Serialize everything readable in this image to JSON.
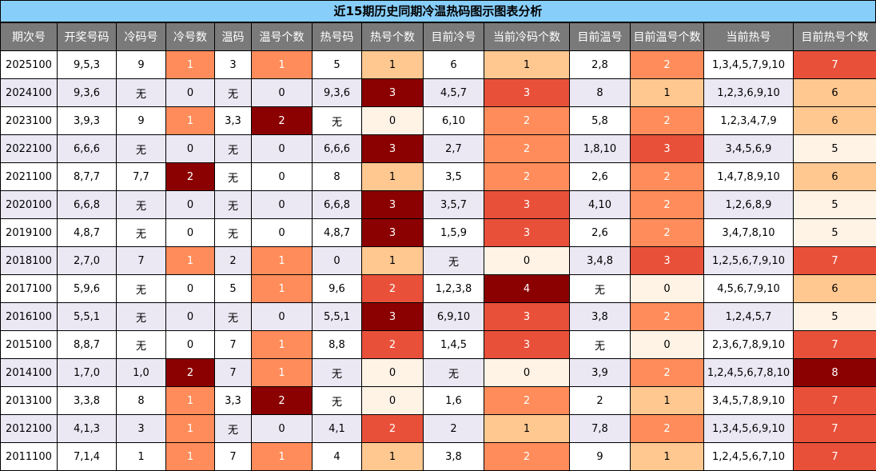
{
  "chart_data": {
    "type": "table",
    "title": "近15期历史同期冷温热码图示图表分析",
    "columns": [
      "期次号",
      "开奖号码",
      "冷码号",
      "冷号数",
      "温码",
      "温号个数",
      "热号码",
      "热号个数",
      "目前冷号",
      "当前冷码个数",
      "目前温号",
      "目前温号个数",
      "当前热号",
      "目前热号个数"
    ],
    "heat_colors": {
      "level1": "#ffc890",
      "level2": "#ff8c5a",
      "level3": "#e8503a",
      "level4": "#8b0000",
      "level1_soft": "#ffd8a8",
      "empty": "#fff3e6"
    },
    "rows": [
      [
        "2025100",
        "9,5,3",
        "9",
        "1",
        "3",
        "1",
        "5",
        "1",
        "6",
        "1",
        "2,8",
        "2",
        "1,3,4,5,7,9,10",
        "7"
      ],
      [
        "2024100",
        "9,3,6",
        "无",
        "0",
        "无",
        "0",
        "9,3,6",
        "3",
        "4,5,7",
        "3",
        "8",
        "1",
        "1,2,3,6,9,10",
        "6"
      ],
      [
        "2023100",
        "3,9,3",
        "9",
        "1",
        "3,3",
        "2",
        "无",
        "0",
        "6,10",
        "2",
        "5,8",
        "2",
        "1,2,3,4,7,9",
        "6"
      ],
      [
        "2022100",
        "6,6,6",
        "无",
        "0",
        "无",
        "0",
        "6,6,6",
        "3",
        "2,7",
        "2",
        "1,8,10",
        "3",
        "3,4,5,6,9",
        "5"
      ],
      [
        "2021100",
        "8,7,7",
        "7,7",
        "2",
        "无",
        "0",
        "8",
        "1",
        "3,5",
        "2",
        "2,6",
        "2",
        "1,4,7,8,9,10",
        "6"
      ],
      [
        "2020100",
        "6,6,8",
        "无",
        "0",
        "无",
        "0",
        "6,6,8",
        "3",
        "3,5,7",
        "3",
        "4,10",
        "2",
        "1,2,6,8,9",
        "5"
      ],
      [
        "2019100",
        "4,8,7",
        "无",
        "0",
        "无",
        "0",
        "4,8,7",
        "3",
        "1,5,9",
        "3",
        "2,6",
        "2",
        "3,4,7,8,10",
        "5"
      ],
      [
        "2018100",
        "2,7,0",
        "7",
        "1",
        "2",
        "1",
        "0",
        "1",
        "无",
        "0",
        "3,4,8",
        "3",
        "1,2,5,6,7,9,10",
        "7"
      ],
      [
        "2017100",
        "5,9,6",
        "无",
        "0",
        "5",
        "1",
        "9,6",
        "2",
        "1,2,3,8",
        "4",
        "无",
        "0",
        "4,5,6,7,9,10",
        "6"
      ],
      [
        "2016100",
        "5,5,1",
        "无",
        "0",
        "无",
        "0",
        "5,5,1",
        "3",
        "6,9,10",
        "3",
        "3,8",
        "2",
        "1,2,4,5,7",
        "5"
      ],
      [
        "2015100",
        "8,8,7",
        "无",
        "0",
        "7",
        "1",
        "8,8",
        "2",
        "1,4,5",
        "3",
        "无",
        "0",
        "2,3,6,7,8,9,10",
        "7"
      ],
      [
        "2014100",
        "1,7,0",
        "1,0",
        "2",
        "7",
        "1",
        "无",
        "0",
        "无",
        "0",
        "3,9",
        "2",
        "1,2,4,5,6,7,8,10",
        "8"
      ],
      [
        "2013100",
        "3,3,8",
        "8",
        "1",
        "3,3",
        "2",
        "无",
        "0",
        "1,6",
        "2",
        "2",
        "1",
        "3,4,5,7,8,9,10",
        "7"
      ],
      [
        "2012100",
        "4,1,3",
        "3",
        "1",
        "无",
        "0",
        "4,1",
        "2",
        "2",
        "1",
        "7,8",
        "2",
        "1,3,4,5,6,9,10",
        "7"
      ],
      [
        "2011100",
        "7,1,4",
        "1",
        "1",
        "7",
        "1",
        "4",
        "1",
        "3,8",
        "2",
        "9",
        "1",
        "1,2,4,5,6,7,10",
        "7"
      ]
    ]
  }
}
